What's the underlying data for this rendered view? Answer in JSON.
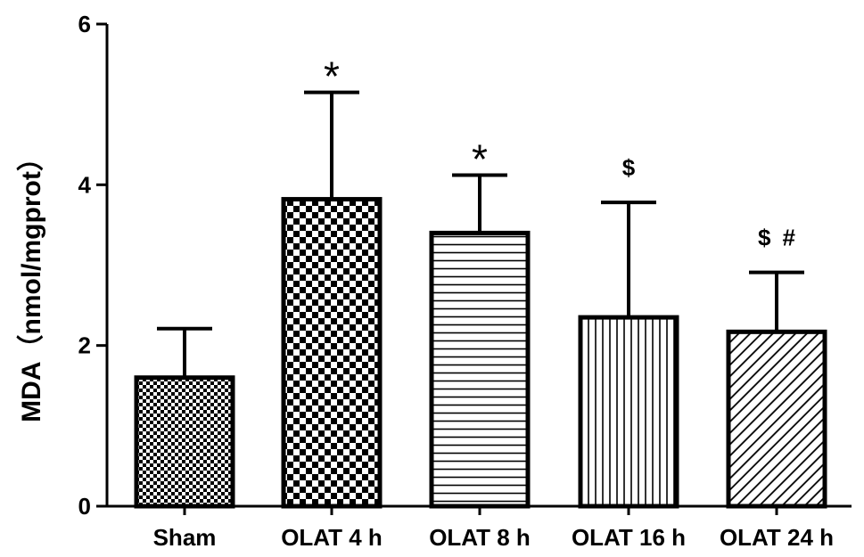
{
  "chart_data": {
    "type": "bar",
    "ylabel": "MDA（nmol/mgprot）",
    "ylim": [
      0,
      6
    ],
    "yticks": [
      0,
      2,
      4,
      6
    ],
    "grid": false,
    "categories": [
      "Sham",
      "OLAT 4 h",
      "OLAT 8 h",
      "OLAT 16 h",
      "OLAT 24 h"
    ],
    "values": [
      1.6,
      3.82,
      3.4,
      2.35,
      2.17
    ],
    "error_upper": [
      0.61,
      1.33,
      0.72,
      1.43,
      0.74
    ],
    "patterns": [
      "fine-checker",
      "coarse-checker",
      "horizontal-lines",
      "vertical-lines",
      "diagonal-lines"
    ],
    "annotations": [
      "",
      "*",
      "*",
      "$",
      "$ #"
    ],
    "colors": {
      "ink": "#000000",
      "fill": "#ffffff"
    }
  }
}
